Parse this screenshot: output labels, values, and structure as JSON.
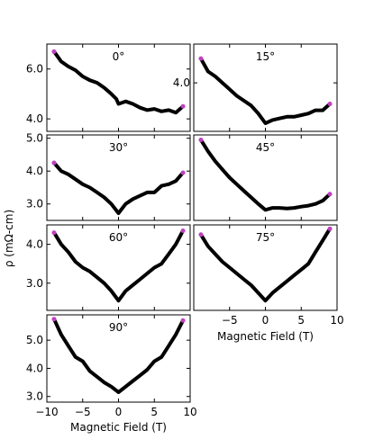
{
  "figure": {
    "ylabel": "ρ (mΩ-cm)",
    "xlabel": "Magnetic Field (T)",
    "marker_color": "#c040c0",
    "line_color": "#000000"
  },
  "chart_data": [
    {
      "type": "line",
      "panel": "0deg",
      "title": "0°",
      "xlim": [
        -10,
        10
      ],
      "ylim": [
        3.5,
        7.0
      ],
      "yticks": [
        "4.0",
        "6.0"
      ],
      "xticks": [],
      "x": [
        -9,
        -8,
        -7,
        -6,
        -5,
        -4,
        -3,
        -2,
        -1,
        -0.3,
        0,
        0.5,
        1,
        2,
        3,
        4,
        5,
        6,
        7,
        8,
        9
      ],
      "y": [
        6.7,
        6.3,
        6.1,
        5.95,
        5.7,
        5.55,
        5.45,
        5.25,
        5.0,
        4.8,
        4.6,
        4.65,
        4.7,
        4.6,
        4.45,
        4.35,
        4.4,
        4.3,
        4.35,
        4.25,
        4.5
      ],
      "endpoints": [
        [
          -9,
          6.7
        ],
        [
          9,
          4.5
        ]
      ]
    },
    {
      "type": "line",
      "panel": "15deg",
      "title": "15°",
      "xlim": [
        -10,
        10
      ],
      "ylim": [
        2.5,
        5.2
      ],
      "yticks": [
        "4.0"
      ],
      "xticks": [],
      "x": [
        -9,
        -8,
        -7,
        -6,
        -5,
        -4,
        -3,
        -2,
        -1,
        0,
        1,
        2,
        3,
        4,
        5,
        6,
        7,
        8,
        9
      ],
      "y": [
        4.75,
        4.35,
        4.2,
        4.0,
        3.8,
        3.6,
        3.45,
        3.3,
        3.05,
        2.75,
        2.85,
        2.9,
        2.95,
        2.95,
        3.0,
        3.05,
        3.15,
        3.15,
        3.35
      ],
      "endpoints": [
        [
          -9,
          4.75
        ],
        [
          9,
          3.35
        ]
      ]
    },
    {
      "type": "line",
      "panel": "30deg",
      "title": "30°",
      "xlim": [
        -10,
        10
      ],
      "ylim": [
        2.5,
        5.1
      ],
      "yticks": [
        "3.0",
        "4.0",
        "5.0"
      ],
      "xticks": [],
      "x": [
        -9,
        -8,
        -7,
        -6,
        -5,
        -4,
        -3,
        -2,
        -1,
        0,
        1,
        2,
        3,
        4,
        5,
        6,
        7,
        8,
        9
      ],
      "y": [
        4.25,
        4.0,
        3.9,
        3.75,
        3.6,
        3.5,
        3.35,
        3.2,
        3.0,
        2.72,
        3.0,
        3.15,
        3.25,
        3.35,
        3.35,
        3.55,
        3.6,
        3.7,
        3.95
      ],
      "endpoints": [
        [
          -9,
          4.25
        ],
        [
          9,
          3.95
        ]
      ]
    },
    {
      "type": "line",
      "panel": "45deg",
      "title": "45°",
      "xlim": [
        -10,
        10
      ],
      "ylim": [
        2.5,
        5.1
      ],
      "yticks": [],
      "xticks": [],
      "x": [
        -9,
        -8,
        -7,
        -6,
        -5,
        -4,
        -3,
        -2,
        -1,
        0,
        1,
        2,
        3,
        4,
        5,
        6,
        7,
        8,
        9
      ],
      "y": [
        4.95,
        4.6,
        4.3,
        4.05,
        3.8,
        3.6,
        3.4,
        3.2,
        3.0,
        2.82,
        2.88,
        2.88,
        2.86,
        2.88,
        2.92,
        2.95,
        3.0,
        3.1,
        3.3
      ],
      "endpoints": [
        [
          -9,
          4.95
        ],
        [
          9,
          3.3
        ]
      ]
    },
    {
      "type": "line",
      "panel": "60deg",
      "title": "60°",
      "xlim": [
        -10,
        10
      ],
      "ylim": [
        2.3,
        4.5
      ],
      "yticks": [
        "3.0",
        "4.0"
      ],
      "xticks": [],
      "x": [
        -9,
        -8,
        -7,
        -6,
        -5,
        -4,
        -3,
        -2,
        -1,
        0,
        1,
        2,
        3,
        4,
        5,
        6,
        7,
        8,
        9
      ],
      "y": [
        4.3,
        4.0,
        3.8,
        3.55,
        3.4,
        3.3,
        3.15,
        3.0,
        2.8,
        2.55,
        2.8,
        2.95,
        3.1,
        3.25,
        3.4,
        3.5,
        3.75,
        4.0,
        4.35
      ],
      "endpoints": [
        [
          -9,
          4.3
        ],
        [
          9,
          4.35
        ]
      ]
    },
    {
      "type": "line",
      "panel": "75deg",
      "title": "75°",
      "xlim": [
        -10,
        10
      ],
      "ylim": [
        2.3,
        4.5
      ],
      "yticks": [],
      "xticks": [
        "−5",
        "0",
        "5",
        "10"
      ],
      "xtick_values": [
        -5,
        0,
        5,
        10
      ],
      "xlabel": "Magnetic Field (T)",
      "x": [
        -9,
        -8,
        -7,
        -6,
        -5,
        -4,
        -3,
        -2,
        -1,
        0,
        1,
        2,
        3,
        4,
        5,
        6,
        7,
        8,
        9
      ],
      "y": [
        4.25,
        3.95,
        3.75,
        3.55,
        3.4,
        3.25,
        3.1,
        2.95,
        2.75,
        2.55,
        2.75,
        2.9,
        3.05,
        3.2,
        3.35,
        3.5,
        3.8,
        4.1,
        4.4
      ],
      "endpoints": [
        [
          -9,
          4.25
        ],
        [
          9,
          4.4
        ]
      ]
    },
    {
      "type": "line",
      "panel": "90deg",
      "title": "90°",
      "xlim": [
        -10,
        10
      ],
      "ylim": [
        2.8,
        5.9
      ],
      "yticks": [
        "3.0",
        "4.0",
        "5.0"
      ],
      "xticks": [
        "−10",
        "−5",
        "0",
        "5",
        "10"
      ],
      "xtick_values": [
        -10,
        -5,
        0,
        5,
        10
      ],
      "xlabel": "Magnetic Field (T)",
      "x": [
        -9,
        -8,
        -7,
        -6,
        -5,
        -4,
        -3,
        -2,
        -1,
        0,
        1,
        2,
        3,
        4,
        5,
        6,
        7,
        8,
        9
      ],
      "y": [
        5.75,
        5.2,
        4.8,
        4.4,
        4.25,
        3.9,
        3.7,
        3.5,
        3.35,
        3.15,
        3.35,
        3.55,
        3.75,
        3.95,
        4.25,
        4.4,
        4.8,
        5.2,
        5.7
      ],
      "endpoints": [
        [
          -9,
          5.75
        ],
        [
          9,
          5.7
        ]
      ]
    }
  ]
}
